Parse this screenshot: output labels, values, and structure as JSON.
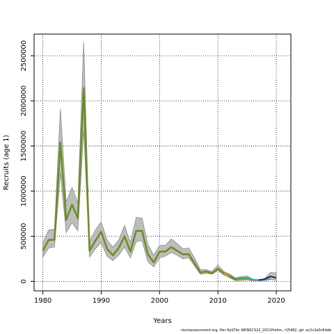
{
  "chart_data": {
    "type": "line",
    "title": "",
    "xlabel": "Years",
    "ylabel": "Recruits (age 1)",
    "xlim": [
      1978.5,
      2022.5
    ],
    "ylim": [
      -105000,
      2740000
    ],
    "x_ticks": [
      "1980",
      "1990",
      "2000",
      "2010",
      "2020"
    ],
    "y_ticks": [
      "0",
      "500000",
      "1000000",
      "1500000",
      "2000000",
      "2500000"
    ],
    "grid": true,
    "band": {
      "x": [
        1980,
        1981,
        1982,
        1983,
        1984,
        1985,
        1986,
        1987,
        1988,
        1989,
        1990,
        1991,
        1992,
        1993,
        1994,
        1995,
        1996,
        1997,
        1998,
        1999,
        2000,
        2001,
        2002,
        2003,
        2004,
        2005,
        2006,
        2007,
        2008,
        2009,
        2010,
        2011,
        2012,
        2013,
        2014,
        2015,
        2016,
        2017,
        2018,
        2019,
        2020
      ],
      "lower": [
        270000,
        370000,
        380000,
        1200000,
        540000,
        650000,
        560000,
        1670000,
        270000,
        360000,
        430000,
        280000,
        230000,
        290000,
        380000,
        260000,
        440000,
        450000,
        220000,
        160000,
        260000,
        280000,
        320000,
        290000,
        250000,
        260000,
        170000,
        80000,
        90000,
        80000,
        120000,
        70000,
        40000,
        8000,
        10000,
        15000,
        5000,
        5000,
        8000,
        20000,
        15000
      ],
      "upper": [
        430000,
        570000,
        580000,
        1910000,
        880000,
        1040000,
        870000,
        2650000,
        440000,
        570000,
        660000,
        460000,
        380000,
        460000,
        620000,
        430000,
        710000,
        700000,
        410000,
        290000,
        400000,
        400000,
        470000,
        420000,
        360000,
        370000,
        260000,
        130000,
        130000,
        110000,
        180000,
        110000,
        80000,
        40000,
        55000,
        60000,
        25000,
        20000,
        30000,
        100000,
        95000
      ]
    },
    "series": [
      {
        "color": "#6b8e23",
        "x": [
          1980,
          1981,
          1982,
          1983,
          1984,
          1985,
          1986,
          1987,
          1988,
          1989,
          1990,
          1991,
          1992,
          1993,
          1994,
          1995,
          1996,
          1997,
          1998,
          1999,
          2000,
          2001,
          2002,
          2003,
          2004,
          2005,
          2006,
          2007,
          2008,
          2009,
          2010,
          2011,
          2012,
          2013,
          2014,
          2015
        ],
        "y": [
          340000,
          460000,
          460000,
          1540000,
          680000,
          850000,
          700000,
          2140000,
          340000,
          450000,
          550000,
          360000,
          290000,
          370000,
          500000,
          330000,
          560000,
          560000,
          300000,
          210000,
          330000,
          330000,
          380000,
          340000,
          300000,
          300000,
          200000,
          100000,
          110000,
          90000,
          140000,
          90000,
          60000,
          20000,
          30000,
          30000
        ]
      },
      {
        "color": "#e0a000",
        "x": [
          2011,
          2012,
          2013,
          2014,
          2015,
          2016
        ],
        "y": [
          85000,
          55000,
          20000,
          20000,
          20000,
          10000
        ]
      },
      {
        "color": "#2e8b57",
        "x": [
          2012,
          2013,
          2014,
          2015,
          2016,
          2017
        ],
        "y": [
          55000,
          25000,
          35000,
          40000,
          18000,
          10000
        ]
      },
      {
        "color": "#20b2aa",
        "x": [
          2014,
          2015,
          2016,
          2017,
          2018
        ],
        "y": [
          25000,
          35000,
          15000,
          12000,
          15000
        ]
      },
      {
        "color": "#5f9ea0",
        "x": [
          2015,
          2016,
          2017,
          2018,
          2019
        ],
        "y": [
          25000,
          12000,
          12000,
          18000,
          30000
        ]
      },
      {
        "color": "#191970",
        "x": [
          2017,
          2018,
          2019,
          2020
        ],
        "y": [
          15000,
          25000,
          55000,
          40000
        ]
      }
    ]
  },
  "footer": "stockassessment.org, Her 6aS7bc WKNSCS22_2021Prelim, r15482, git: ec2c2a0c6dde"
}
